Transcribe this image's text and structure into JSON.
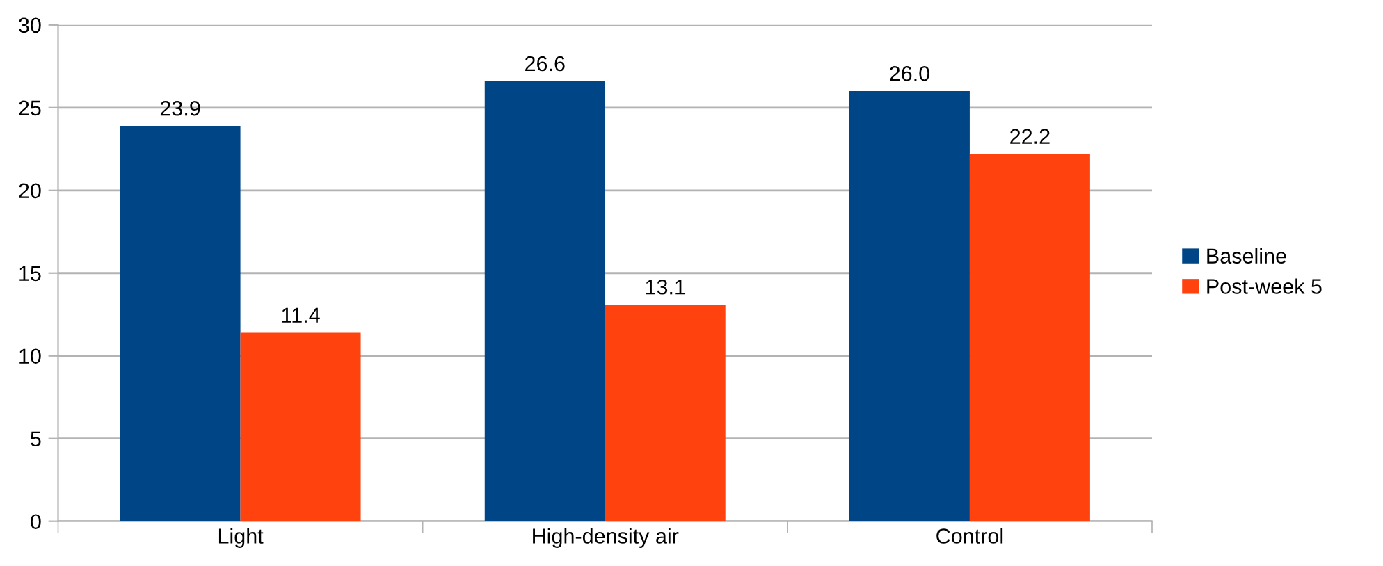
{
  "chart_data": {
    "type": "bar",
    "categories": [
      "Light",
      "High-density air",
      "Control"
    ],
    "series": [
      {
        "name": "Baseline",
        "color": "#004586",
        "values": [
          23.9,
          26.6,
          26.0
        ],
        "value_labels": [
          "23.9",
          "26.6",
          "26.0"
        ]
      },
      {
        "name": "Post-week 5",
        "color": "#ff420e",
        "values": [
          11.4,
          13.1,
          22.2
        ],
        "value_labels": [
          "11.4",
          "13.1",
          "22.2"
        ]
      }
    ],
    "ylim": [
      0,
      30
    ],
    "yticks": [
      0,
      5,
      10,
      15,
      20,
      25,
      30
    ],
    "grid": "y",
    "legend": "right"
  }
}
